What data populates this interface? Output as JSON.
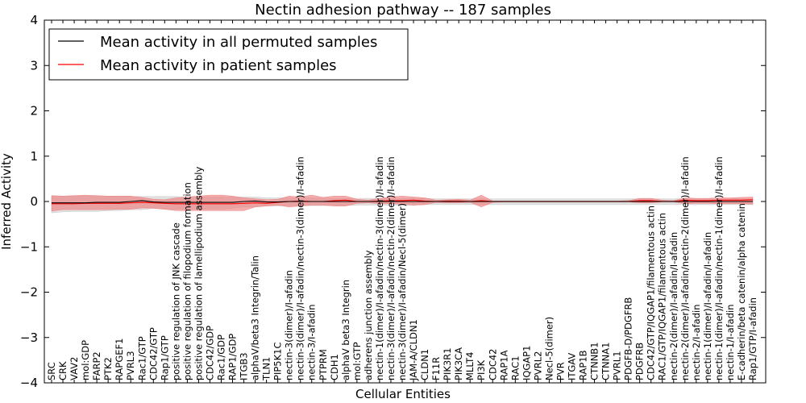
{
  "chart_data": {
    "type": "line",
    "title": "Nectin adhesion pathway -- 187 samples",
    "xlabel": "Cellular Entities",
    "ylabel": "Inferred Activity",
    "ylim": [
      -4,
      4
    ],
    "yticks": [
      -4,
      -3,
      -2,
      -1,
      0,
      1,
      2,
      3,
      4
    ],
    "ytick_labels": [
      "−4",
      "−3",
      "−2",
      "−1",
      "0",
      "1",
      "2",
      "3",
      "4"
    ],
    "grid": false,
    "legend_position": "top-left",
    "legend": [
      {
        "label": "Mean activity in all permuted samples",
        "color": "#000000"
      },
      {
        "label": "Mean activity in patient samples",
        "color": "#ff0000"
      }
    ],
    "categories": [
      "SRC",
      "CRK",
      "VAV2",
      "mol:GDP",
      "FARP2",
      "PTK2",
      "RAPGEF1",
      "PVRL3",
      "Rac1/GTP",
      "CDC42/GTP",
      "Rap1/GTP",
      "positive regulation of JNK cascade",
      "positive regulation of filopodium formation",
      "positive regulation of lamellipodium assembly",
      "CDC42/GDP",
      "Rac1/GDP",
      "RAP1/GDP",
      "ITGB3",
      "alphaV/beta3 Integrin/Talin",
      "TLN1",
      "PIP5K1C",
      "nectin-3(dimer)/I-afadin",
      "nectin-3(dimer)/I-afadin/nectin-3(dimer)/I-afadin",
      "nectin-3/I-afadin",
      "PTPRM",
      "CDH1",
      "alphaV beta3 Integrin",
      "mol:GTP",
      "adherens junction assembly",
      "nectin-1(dimer)/I-afadin/nectin-3(dimer)/I-afadin",
      "nectin-3(dimer)/I-afadin/nectin-2(dimer)/I-afadin",
      "nectin-3(dimer)/I-afadin/Necl-5(dimer)",
      "JAM-A/CLDN1",
      "CLDN1",
      "F11R",
      "PIK3R1",
      "PIK3CA",
      "MLLT4",
      "PI3K",
      "CDC42",
      "RAP1A",
      "RAC1",
      "IQGAP1",
      "PVRL2",
      "Necl-5(dimer)",
      "PVR",
      "ITGAV",
      "RAP1B",
      "CTNNB1",
      "CTNNA1",
      "PVRL1",
      "PDGFB-D/PDGFRB",
      "PDGFRB",
      "CDC42/GTP/IQGAP1/filamentous actin",
      "RAC1/GTP/IQGAP1/filamentous actin",
      "nectin-2(dimer)/I-afadin/I-afadin",
      "nectin-2(dimer)/I-afadin/nectin-2(dimer)/I-afadin",
      "nectin-2/I-afadin",
      "nectin-1(dimer)/I-afadin/I-afadin",
      "nectin-1(dimer)/I-afadin/nectin-1(dimer)/I-afadin",
      "nectin-1/I-afadin",
      "E-cadherin/beta catenin/alpha catenin",
      "Rap1/GTP/I-afadin"
    ],
    "series": [
      {
        "name": "Mean activity in all permuted samples",
        "color": "#000000",
        "values": [
          -0.03,
          -0.03,
          -0.03,
          -0.03,
          -0.02,
          -0.02,
          -0.02,
          0.0,
          0.02,
          -0.01,
          -0.02,
          -0.02,
          -0.02,
          -0.02,
          -0.02,
          -0.02,
          -0.02,
          0.0,
          0.01,
          -0.01,
          -0.01,
          0.0,
          0.0,
          0.0,
          0.0,
          0.0,
          0.0,
          0.0,
          0.0,
          0.0,
          0.0,
          0.0,
          0.0,
          0.0,
          0.0,
          0.0,
          0.0,
          0.0,
          0.0,
          0.0,
          0.0,
          0.0,
          0.0,
          0.0,
          0.0,
          0.0,
          0.0,
          0.0,
          0.0,
          0.0,
          0.0,
          0.0,
          0.0,
          0.0,
          0.0,
          0.0,
          0.0,
          0.0,
          0.0,
          0.0,
          0.0,
          0.0,
          0.0
        ]
      },
      {
        "name": "Mean activity in patient samples",
        "color": "#ff0000",
        "values": [
          -0.05,
          -0.05,
          -0.05,
          -0.04,
          -0.04,
          -0.04,
          -0.04,
          -0.03,
          -0.02,
          -0.03,
          -0.04,
          -0.05,
          -0.05,
          -0.05,
          -0.05,
          -0.05,
          -0.05,
          -0.04,
          -0.03,
          -0.04,
          -0.02,
          0.0,
          0.01,
          0.0,
          0.0,
          0.02,
          0.03,
          0.0,
          0.0,
          0.01,
          0.02,
          0.02,
          0.03,
          0.01,
          0.0,
          0.01,
          0.01,
          0.0,
          0.02,
          0.0,
          0.0,
          0.0,
          0.0,
          0.0,
          0.0,
          0.0,
          0.0,
          0.0,
          0.0,
          0.0,
          0.0,
          0.0,
          0.02,
          0.02,
          0.0,
          0.0,
          0.03,
          0.02,
          0.02,
          0.03,
          0.03,
          0.03,
          0.04
        ]
      }
    ],
    "bands": [
      {
        "name": "Permuted sample spread",
        "color": "#cccccc",
        "lower": [
          -0.25,
          -0.23,
          -0.22,
          -0.22,
          -0.22,
          -0.2,
          -0.2,
          -0.18,
          -0.18,
          -0.15,
          -0.17,
          -0.17,
          -0.17,
          -0.17,
          -0.17,
          -0.17,
          -0.15,
          -0.12,
          -0.12,
          -0.1,
          -0.1,
          -0.09,
          -0.09,
          -0.09,
          -0.09,
          -0.09,
          -0.09,
          -0.08,
          -0.08,
          -0.08,
          -0.08,
          -0.08,
          -0.08,
          -0.07,
          -0.07,
          -0.07,
          -0.07,
          -0.07,
          -0.07,
          -0.07,
          -0.07,
          -0.07,
          -0.07,
          -0.07,
          -0.07,
          -0.07,
          -0.07,
          -0.07,
          -0.07,
          -0.07,
          -0.07,
          -0.07,
          -0.07,
          -0.07,
          -0.07,
          -0.07,
          -0.07,
          -0.07,
          -0.07,
          -0.07,
          -0.07,
          -0.07,
          -0.07
        ],
        "upper": [
          0.12,
          0.12,
          0.12,
          0.12,
          0.12,
          0.11,
          0.11,
          0.11,
          0.11,
          0.11,
          0.11,
          0.11,
          0.1,
          0.1,
          0.1,
          0.1,
          0.1,
          0.1,
          0.1,
          0.08,
          0.08,
          0.08,
          0.08,
          0.08,
          0.07,
          0.07,
          0.07,
          0.07,
          0.07,
          0.07,
          0.07,
          0.07,
          0.07,
          0.07,
          0.06,
          0.06,
          0.06,
          0.06,
          0.06,
          0.06,
          0.06,
          0.06,
          0.06,
          0.06,
          0.06,
          0.06,
          0.06,
          0.06,
          0.06,
          0.06,
          0.06,
          0.06,
          0.06,
          0.06,
          0.06,
          0.06,
          0.06,
          0.06,
          0.06,
          0.06,
          0.06,
          0.06,
          0.06
        ]
      },
      {
        "name": "Patient sample spread",
        "color": "#f08080",
        "lower": [
          -0.21,
          -0.18,
          -0.18,
          -0.18,
          -0.18,
          -0.18,
          -0.17,
          -0.17,
          -0.14,
          -0.15,
          -0.17,
          -0.2,
          -0.2,
          -0.2,
          -0.2,
          -0.2,
          -0.2,
          -0.2,
          -0.12,
          -0.1,
          -0.08,
          -0.12,
          -0.1,
          -0.08,
          -0.08,
          -0.1,
          -0.1,
          -0.04,
          -0.03,
          -0.05,
          -0.05,
          -0.06,
          -0.08,
          -0.07,
          -0.02,
          -0.03,
          -0.03,
          -0.02,
          -0.12,
          -0.02,
          -0.01,
          -0.01,
          -0.01,
          -0.01,
          -0.01,
          -0.01,
          -0.01,
          -0.01,
          -0.01,
          -0.01,
          -0.01,
          -0.01,
          -0.03,
          -0.03,
          -0.01,
          -0.01,
          -0.05,
          -0.04,
          -0.04,
          -0.05,
          -0.05,
          -0.05,
          -0.06
        ],
        "upper": [
          0.13,
          0.12,
          0.13,
          0.14,
          0.13,
          0.12,
          0.12,
          0.12,
          0.09,
          0.05,
          0.04,
          0.08,
          0.1,
          0.12,
          0.14,
          0.14,
          0.12,
          0.08,
          0.06,
          0.04,
          0.05,
          0.12,
          0.1,
          0.14,
          0.09,
          0.12,
          0.12,
          0.05,
          0.03,
          0.07,
          0.1,
          0.12,
          0.1,
          0.08,
          0.03,
          0.04,
          0.05,
          0.03,
          0.14,
          0.01,
          0.01,
          0.01,
          0.01,
          0.01,
          0.01,
          0.01,
          0.01,
          0.01,
          0.01,
          0.01,
          0.01,
          0.02,
          0.07,
          0.07,
          0.03,
          0.02,
          0.08,
          0.07,
          0.07,
          0.08,
          0.08,
          0.09,
          0.1
        ]
      }
    ]
  }
}
